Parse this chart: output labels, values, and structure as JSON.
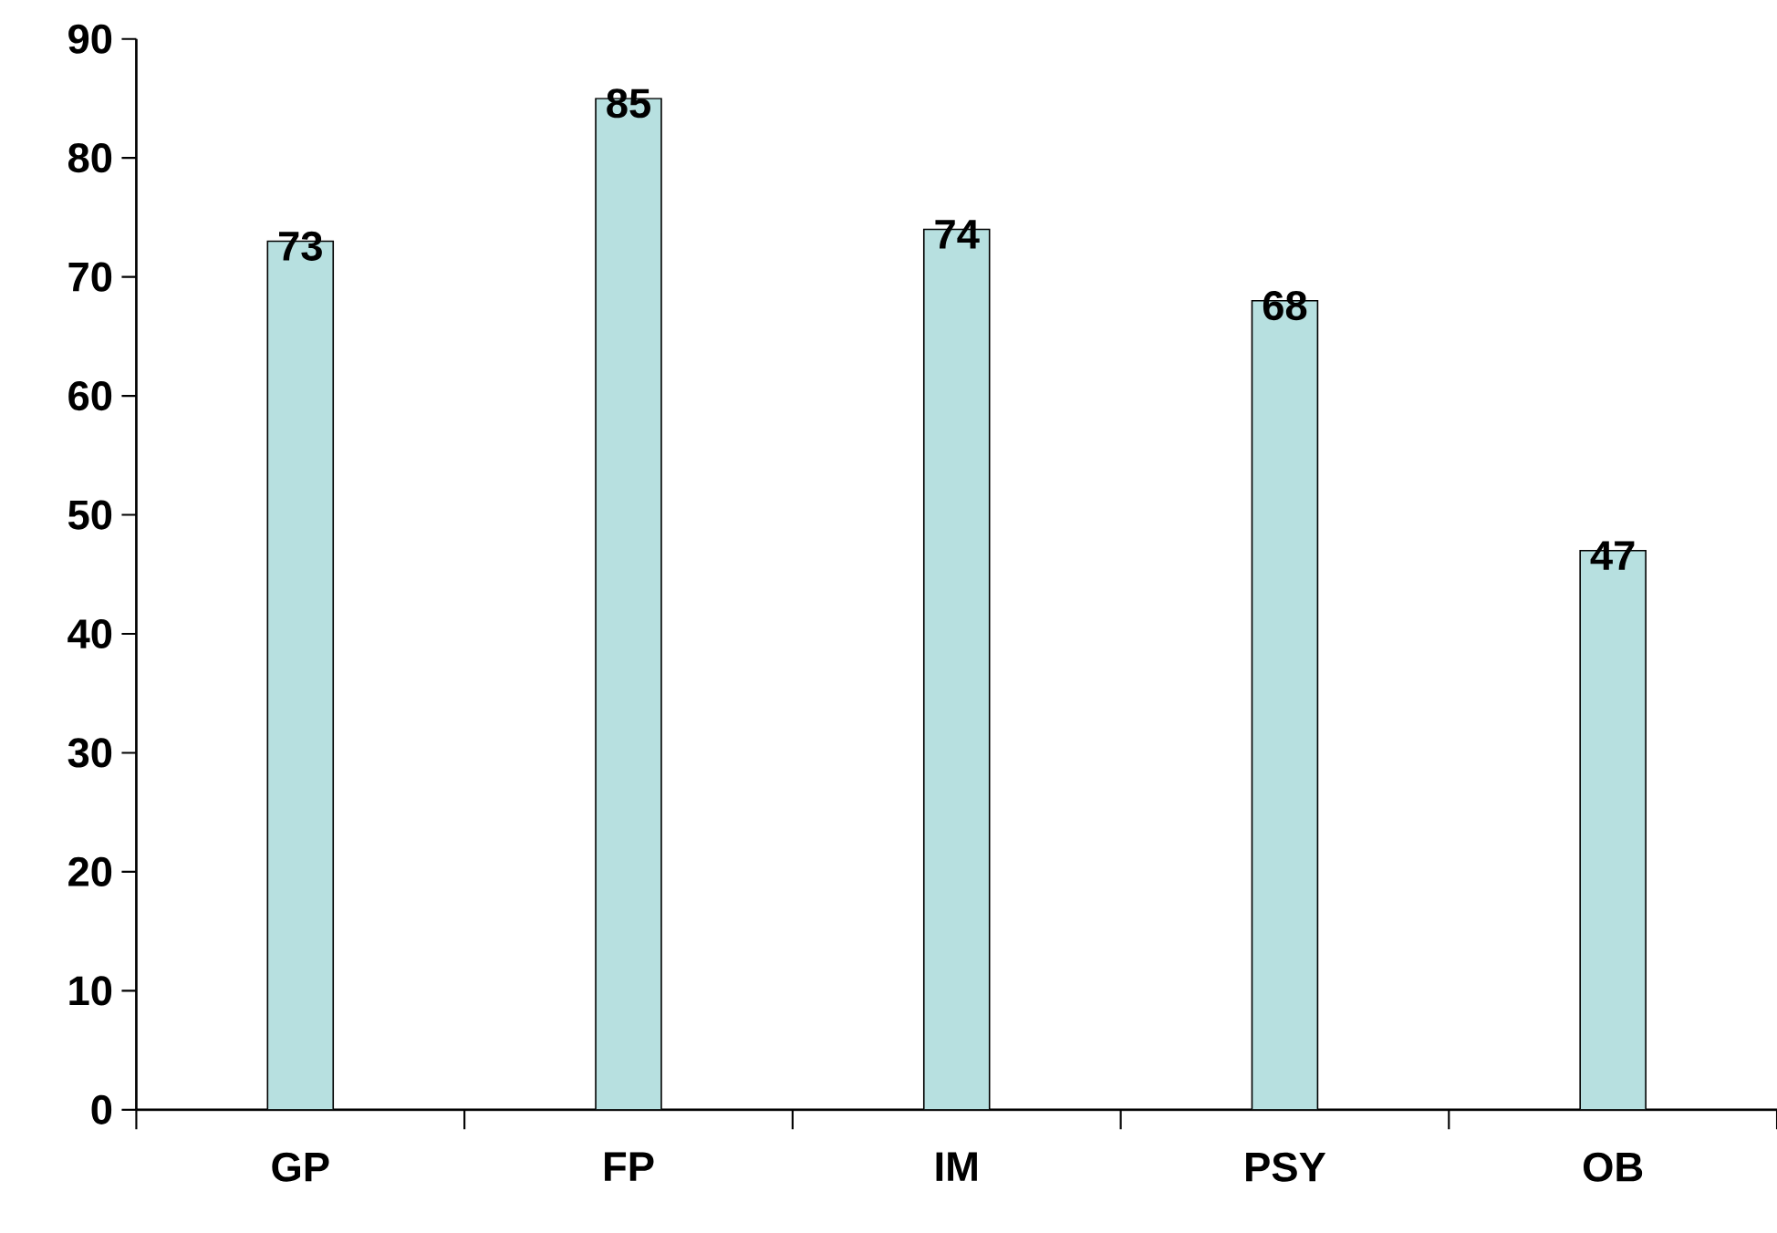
{
  "chart_data": {
    "type": "bar",
    "categories": [
      "GP",
      "FP",
      "IM",
      "PSY",
      "OB"
    ],
    "values": [
      73,
      85,
      74,
      68,
      47
    ],
    "value_labels": [
      "73",
      "85",
      "74",
      "68",
      "47"
    ],
    "color": "#b7e0e0",
    "ylim": [
      0,
      90
    ],
    "yticks": [
      0,
      10,
      20,
      30,
      40,
      50,
      60,
      70,
      80,
      90
    ]
  }
}
